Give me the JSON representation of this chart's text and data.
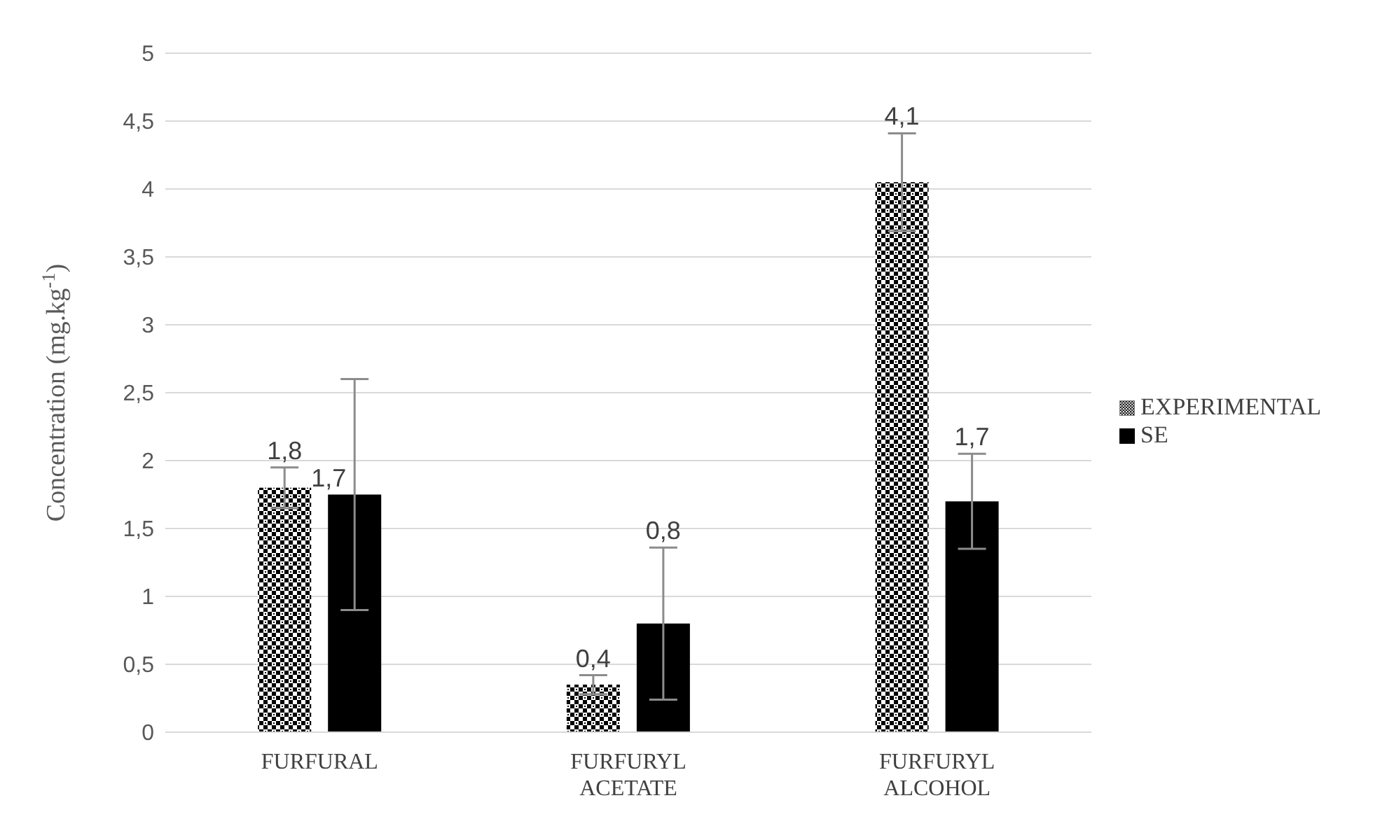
{
  "chart_data": {
    "type": "bar",
    "ylabel": "Concentration (mg.kg$^{-1}$)",
    "categories": [
      "FURFURAL",
      "FURFURYL ACETATE",
      "FURFURYL ALCOHOL"
    ],
    "series": [
      {
        "name": "EXPERIMENTAL",
        "color": "#000000",
        "values": [
          1.8,
          0.35,
          4.05
        ],
        "errors": [
          0.15,
          0.07,
          0.36
        ],
        "value_labels": [
          "1,8",
          "0,4",
          "4,1"
        ]
      },
      {
        "name": "SE",
        "color": "#000000",
        "values": [
          1.75,
          0.8,
          1.7
        ],
        "errors": [
          0.85,
          0.56,
          0.35
        ],
        "value_labels": [
          "1,7",
          "0,8",
          "1,7"
        ]
      }
    ],
    "ylim": [
      0,
      5
    ],
    "yticks": [
      0,
      {
        "value": 0.5,
        "label": "0,5"
      },
      1,
      {
        "value": 1.5,
        "label": "1,5"
      },
      2,
      {
        "value": 2.5,
        "label": "2,5"
      },
      3,
      {
        "value": 3.5,
        "label": "3,5"
      },
      4,
      {
        "value": 4.5,
        "label": "4,5"
      },
      5
    ],
    "grid": "y",
    "legend": "right"
  }
}
